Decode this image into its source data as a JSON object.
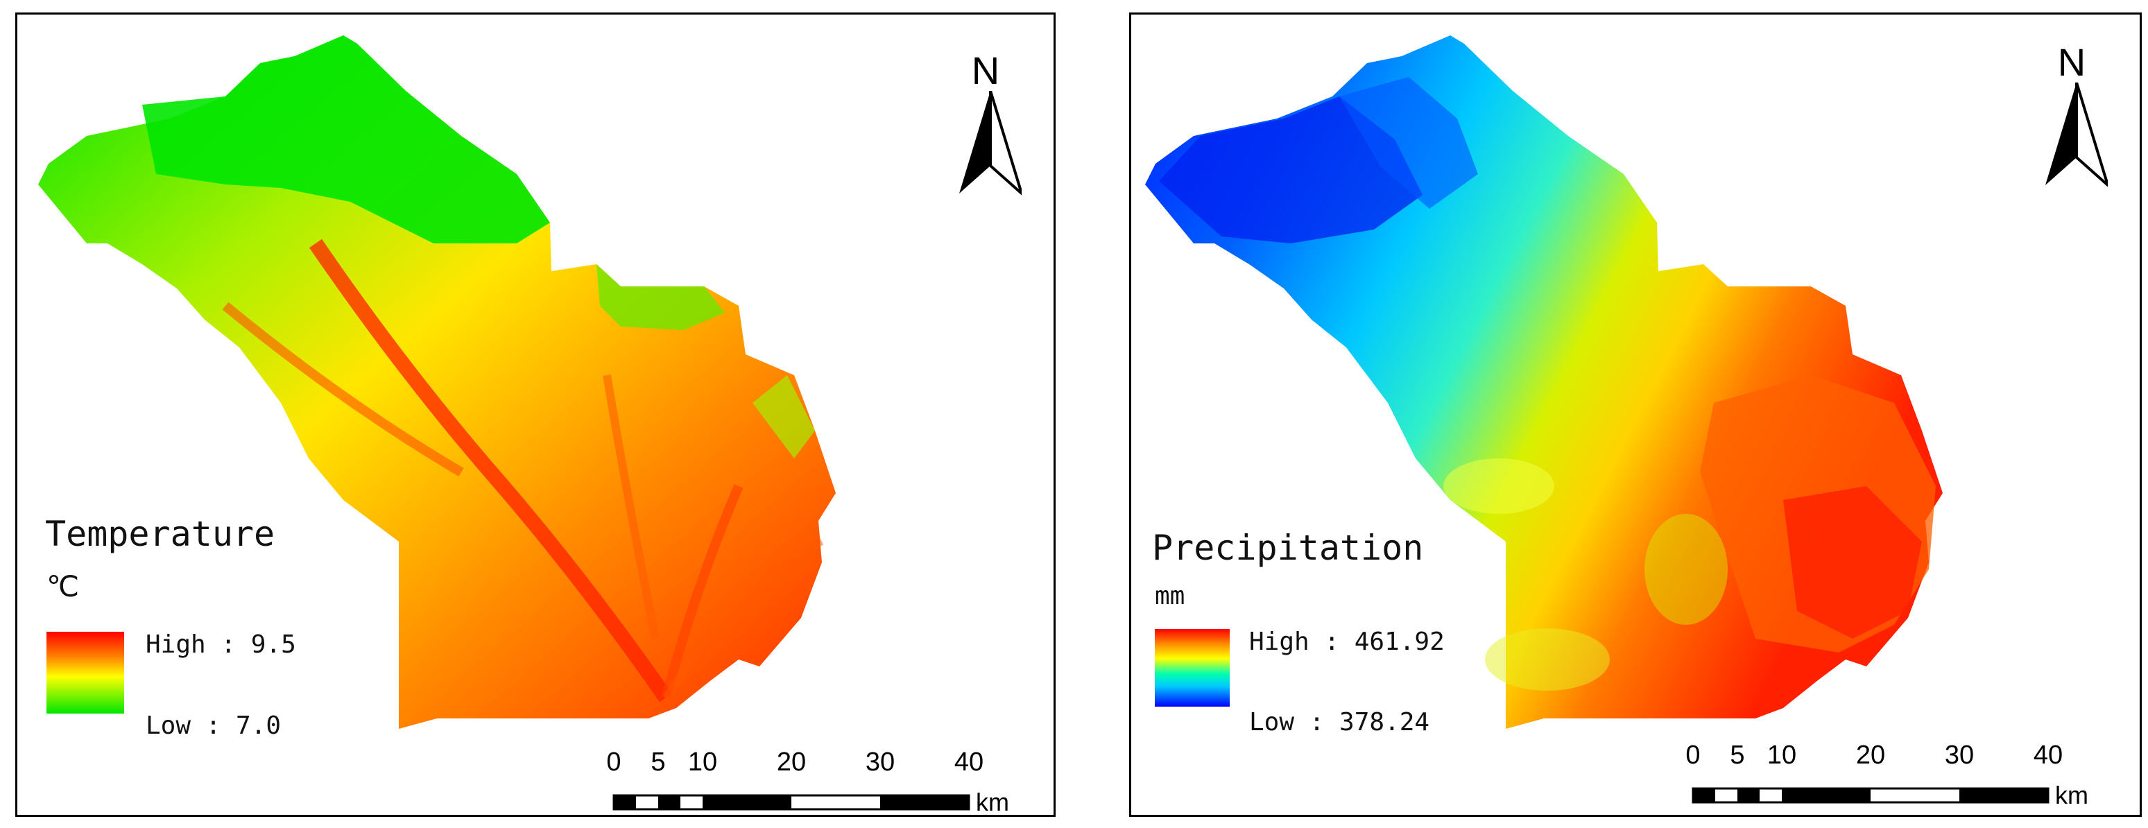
{
  "colors": {
    "temp_high": "#ff0000",
    "temp_mid": "#ffff00",
    "temp_low": "#00e600",
    "prec_high": "#ff0000",
    "prec_mid1": "#ffff00",
    "prec_mid2": "#00ffff",
    "prec_low": "#0000ff"
  },
  "temperature_map": {
    "legend": {
      "title": "Temperature",
      "unit": "℃",
      "high_label": "High : 9.5",
      "low_label": "Low : 7.0"
    },
    "north_label": "N",
    "scale": {
      "ticks": [
        "0",
        "5",
        "10",
        "20",
        "30",
        "40"
      ],
      "unit": "km"
    }
  },
  "precipitation_map": {
    "legend": {
      "title": "Precipitation",
      "unit": "mm",
      "high_label": "High : 461.92",
      "low_label": "Low : 378.24"
    },
    "north_label": "N",
    "scale": {
      "ticks": [
        "0",
        "5",
        "10",
        "20",
        "30",
        "40"
      ],
      "unit": "km"
    }
  }
}
